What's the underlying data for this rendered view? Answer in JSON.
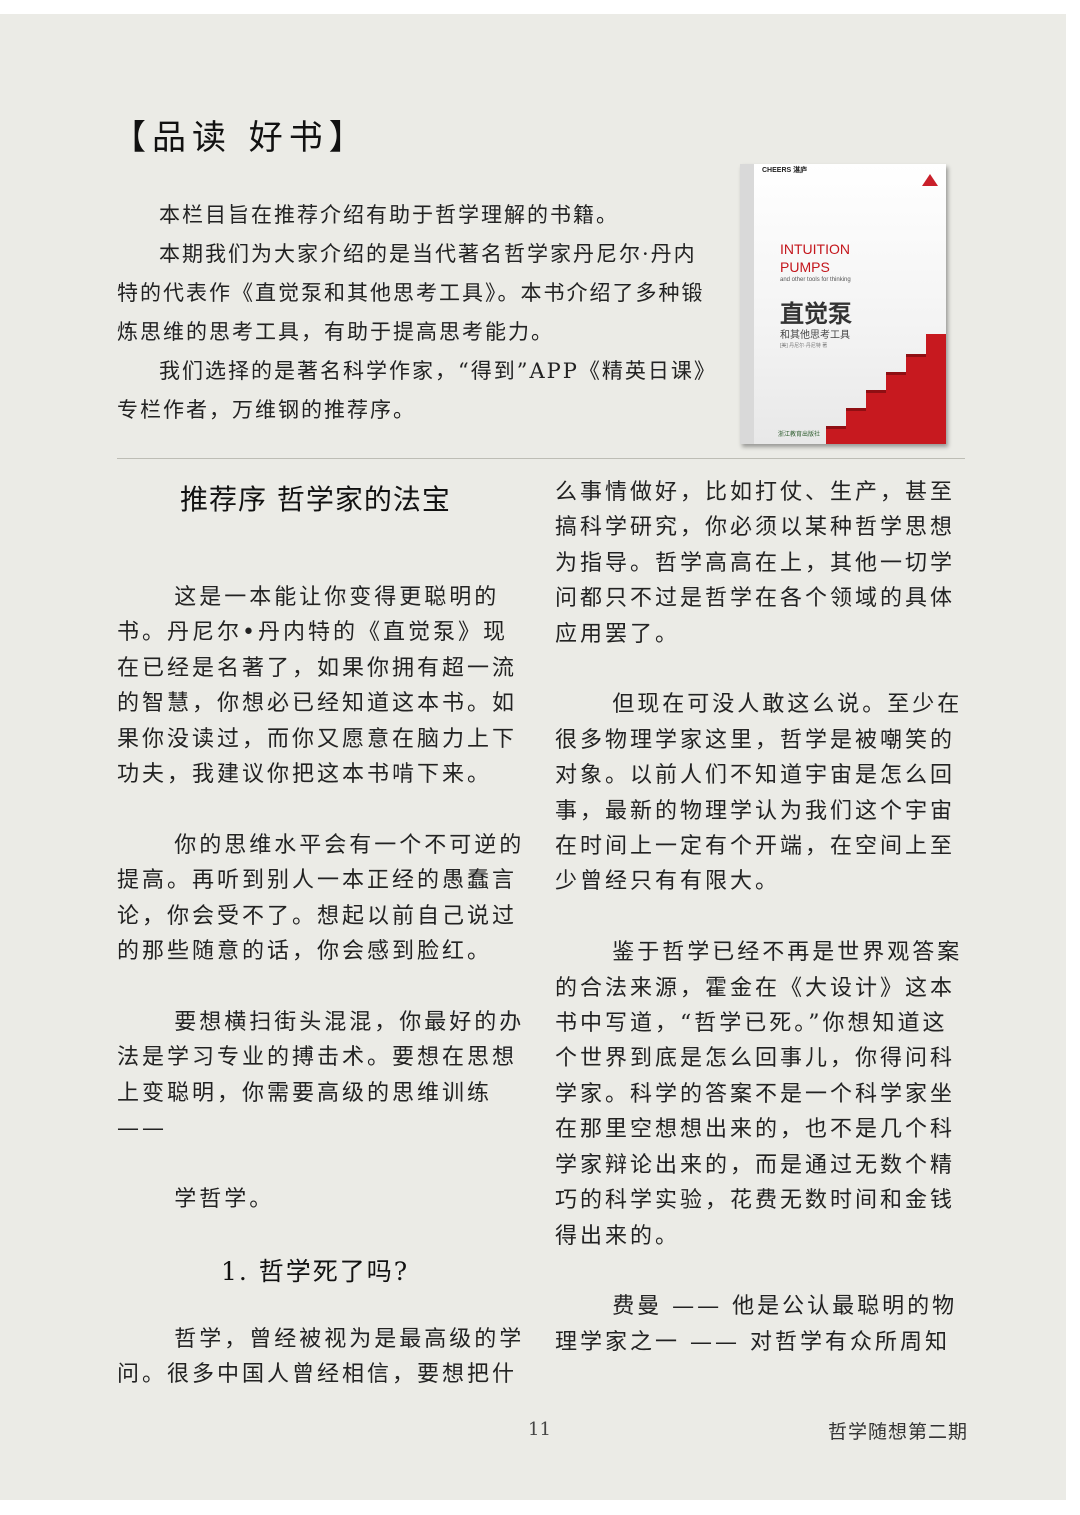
{
  "section_title": "【品读 好书】",
  "intro": [
    "本栏目旨在推荐介绍有助于哲学理解的书籍。",
    "本期我们为大家介绍的是当代著名哲学家丹尼尔·丹内特的代表作《直觉泵和其他思考工具》。本书介绍了多种锻炼思维的思考工具，有助于提高思考能力。",
    "我们选择的是著名科学作家，“得到”APP《精英日课》专栏作者，万维钢的推荐序。"
  ],
  "book_cover": {
    "publisher_logo": "CHEERS 湛庐",
    "title_en_1": "INTUITION",
    "title_en_2": "PUMPS",
    "subtitle_en": "and other tools for thinking",
    "title_cn": "直觉泵",
    "subtitle_cn": "和其他思考工具",
    "author": "[美] 丹尼尔·丹尼特 著",
    "spine": "直觉泵",
    "press": "浙江教育出版社"
  },
  "article": {
    "heading": "推荐序  哲学家的法宝",
    "col1_paragraphs": [
      "这是一本能让你变得更聪明的书。丹尼尔•丹内特的《直觉泵》现在已经是名著了，如果你拥有超一流的智慧，你想必已经知道这本书。如果你没读过，而你又愿意在脑力上下功夫，我建议你把这本书啃下来。",
      "你的思维水平会有一个不可逆的提高。再听到别人一本正经的愚蠢言论，你会受不了。想起以前自己说过的那些随意的话，你会感到脸红。",
      "要想横扫街头混混，你最好的办法是学习专业的搏击术。要想在思想上变聪明，你需要高级的思维训练——",
      "学哲学。"
    ],
    "subheading": "1. 哲学死了吗?",
    "col1b_paragraph": "哲学，曾经被视为是最高级的学问。很多中国人曾经相信，要想把什",
    "col2_paragraphs": [
      "么事情做好，比如打仗、生产，甚至搞科学研究，你必须以某种哲学思想为指导。哲学高高在上，其他一切学问都只不过是哲学在各个领域的具体应用罢了。",
      "但现在可没人敢这么说。至少在很多物理学家这里，哲学是被嘲笑的对象。以前人们不知道宇宙是怎么回事，最新的物理学认为我们这个宇宙在时间上一定有个开端，在空间上至少曾经只有有限大。",
      "鉴于哲学已经不再是世界观答案的合法来源，霍金在《大设计》这本书中写道，“哲学已死。”你想知道这个世界到底是怎么回事儿，你得问科学家。科学的答案不是一个科学家坐在那里空想想出来的，也不是几个科学家辩论出来的，而是通过无数个精巧的科学实验，花费无数时间和金钱得出来的。",
      "费曼 —— 他是公认最聪明的物理学家之一 —— 对哲学有众所周知"
    ]
  },
  "footer": {
    "page_number": "11",
    "publication": "哲学随想第二期"
  }
}
